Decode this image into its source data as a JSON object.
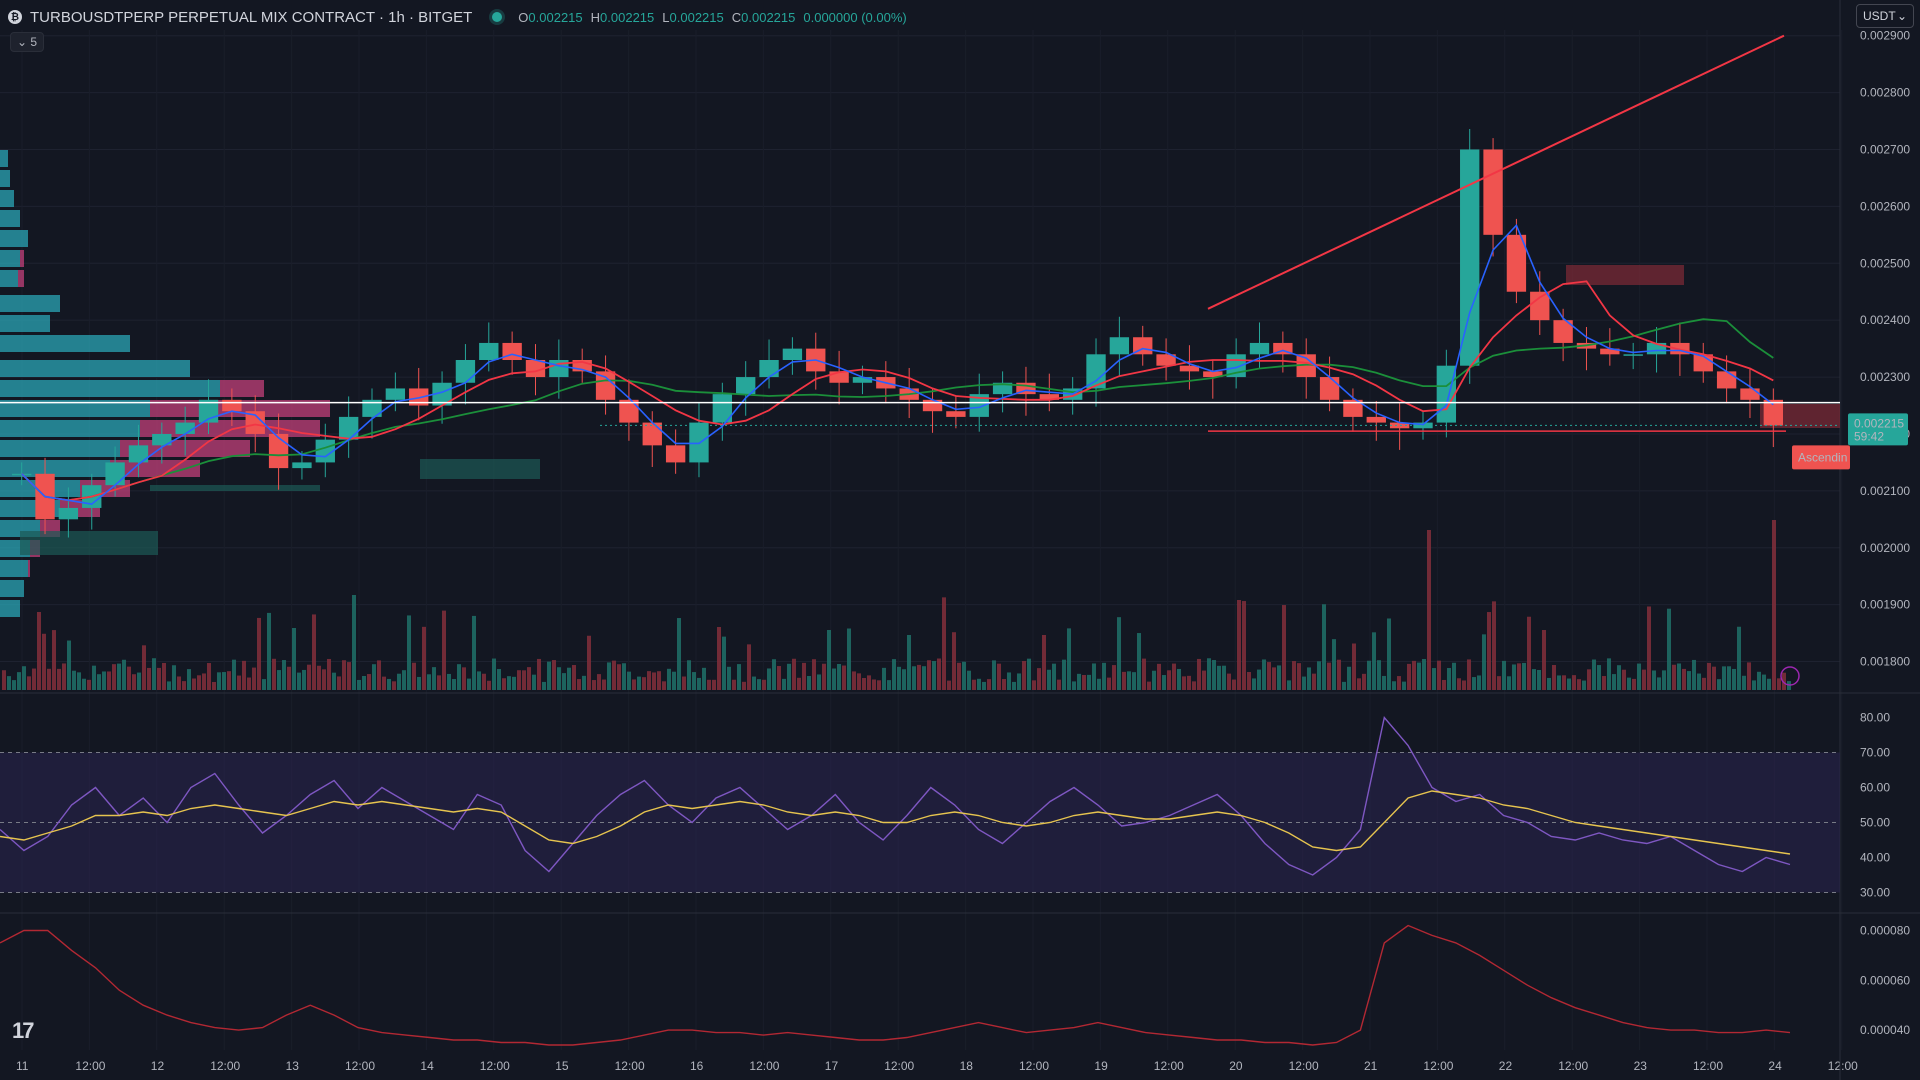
{
  "header": {
    "title": "TURBOUSDTPERP PERPETUAL MIX CONTRACT · 1h · BITGET",
    "ohlc": {
      "o_label": "O",
      "o": "0.002215",
      "h_label": "H",
      "h": "0.002215",
      "l_label": "L",
      "l": "0.002215",
      "c_label": "C",
      "c": "0.002215",
      "change": "0.000000 (0.00%)"
    },
    "interval_count": "5",
    "currency": "USDT"
  },
  "colors": {
    "background": "#131722",
    "up": "#26a69a",
    "down": "#ef5350",
    "ma_blue": "#2962ff",
    "ma_red": "#f23645",
    "ma_green": "#1b8f3a",
    "rsi": "#7e57c2",
    "rsi_ma": "#e6c44f",
    "lower_line": "#f23645",
    "trendline": "#f23645"
  },
  "price_badge": {
    "price": "0.002215",
    "countdown": "59:42"
  },
  "pattern_label": "Ascendin",
  "chart_data": [
    {
      "type": "candlestick",
      "pane": "price",
      "ylim": [
        0.00175,
        0.00291
      ],
      "y_ticks": [
        "0.002900",
        "0.002800",
        "0.002700",
        "0.002600",
        "0.002500",
        "0.002400",
        "0.002300",
        "0.002200",
        "0.002100",
        "0.002000",
        "0.001900",
        "0.001800"
      ],
      "x_ticks": [
        "11",
        "12:00",
        "12",
        "12:00",
        "13",
        "12:00",
        "14",
        "12:00",
        "15",
        "12:00",
        "16",
        "12:00",
        "17",
        "12:00",
        "18",
        "12:00",
        "19",
        "12:00",
        "20",
        "12:00",
        "21",
        "12:00",
        "22",
        "12:00",
        "23",
        "12:00",
        "24",
        "12:00"
      ],
      "closes_approx": [
        0.00213,
        0.00205,
        0.00207,
        0.00211,
        0.00215,
        0.00218,
        0.0022,
        0.00222,
        0.00226,
        0.00224,
        0.0022,
        0.00214,
        0.00215,
        0.00219,
        0.00223,
        0.00226,
        0.00228,
        0.00225,
        0.00229,
        0.00233,
        0.00236,
        0.00233,
        0.0023,
        0.00233,
        0.00231,
        0.00226,
        0.00222,
        0.00218,
        0.00215,
        0.00222,
        0.00227,
        0.0023,
        0.00233,
        0.00235,
        0.00231,
        0.00229,
        0.0023,
        0.00228,
        0.00226,
        0.00224,
        0.00223,
        0.00227,
        0.00229,
        0.00227,
        0.00226,
        0.00228,
        0.00234,
        0.00237,
        0.00234,
        0.00232,
        0.00231,
        0.0023,
        0.00234,
        0.00236,
        0.00234,
        0.0023,
        0.00226,
        0.00223,
        0.00222,
        0.00221,
        0.00222,
        0.00232,
        0.0027,
        0.00255,
        0.00245,
        0.0024,
        0.00236,
        0.00235,
        0.00234,
        0.00234,
        0.00236,
        0.00234,
        0.00231,
        0.00228,
        0.00226,
        0.002215
      ],
      "last_price": 0.002215,
      "horizontal_line": 0.002255,
      "support_line": 0.002212,
      "trendline": {
        "from": 0.00242,
        "to": 0.0029
      }
    },
    {
      "type": "line",
      "pane": "rsi",
      "ylim": [
        25,
        85
      ],
      "y_ticks": [
        "80.00",
        "70.00",
        "60.00",
        "50.00",
        "40.00",
        "30.00"
      ],
      "bands": [
        30,
        50,
        70
      ],
      "values_approx": [
        48,
        42,
        46,
        55,
        60,
        52,
        57,
        50,
        60,
        64,
        55,
        47,
        52,
        58,
        62,
        54,
        60,
        56,
        52,
        48,
        58,
        55,
        42,
        36,
        44,
        52,
        58,
        62,
        55,
        50,
        57,
        60,
        54,
        48,
        52,
        58,
        50,
        45,
        52,
        60,
        55,
        48,
        44,
        50,
        56,
        60,
        55,
        49,
        50,
        52,
        55,
        58,
        52,
        44,
        38,
        35,
        40,
        48,
        80,
        72,
        60,
        56,
        58,
        52,
        50,
        46,
        45,
        47,
        45,
        44,
        46,
        42,
        38,
        36,
        40,
        38
      ],
      "ma_values_approx": [
        46,
        45,
        47,
        49,
        52,
        52,
        53,
        52,
        54,
        55,
        54,
        53,
        52,
        54,
        56,
        55,
        56,
        55,
        54,
        53,
        54,
        53,
        49,
        45,
        44,
        46,
        49,
        53,
        55,
        54,
        55,
        56,
        55,
        53,
        52,
        53,
        52,
        50,
        50,
        52,
        53,
        52,
        50,
        49,
        50,
        52,
        53,
        52,
        51,
        51,
        52,
        53,
        52,
        50,
        47,
        43,
        42,
        43,
        50,
        57,
        59,
        58,
        57,
        55,
        54,
        52,
        50,
        49,
        48,
        47,
        46,
        45,
        44,
        43,
        42,
        41
      ]
    },
    {
      "type": "line",
      "pane": "lower",
      "ylim": [
        3.2e-05,
        8.5e-05
      ],
      "y_ticks": [
        "0.000080",
        "0.000060",
        "0.000040"
      ],
      "values_approx": [
        7.5e-05,
        8e-05,
        8e-05,
        7.2e-05,
        6.5e-05,
        5.6e-05,
        5e-05,
        4.6e-05,
        4.3e-05,
        4.1e-05,
        4e-05,
        4.1e-05,
        4.6e-05,
        5e-05,
        4.6e-05,
        4.1e-05,
        3.9e-05,
        3.8e-05,
        3.7e-05,
        3.6e-05,
        3.6e-05,
        3.5e-05,
        3.5e-05,
        3.4e-05,
        3.4e-05,
        3.5e-05,
        3.6e-05,
        3.8e-05,
        4e-05,
        4e-05,
        3.9e-05,
        3.9e-05,
        3.8e-05,
        3.9e-05,
        3.8e-05,
        3.7e-05,
        3.6e-05,
        3.6e-05,
        3.7e-05,
        3.9e-05,
        4.1e-05,
        4.3e-05,
        4.1e-05,
        3.9e-05,
        4e-05,
        4.1e-05,
        4.3e-05,
        4.1e-05,
        3.9e-05,
        3.8e-05,
        3.7e-05,
        3.6e-05,
        3.6e-05,
        3.5e-05,
        3.5e-05,
        3.4e-05,
        3.5e-05,
        4e-05,
        7.5e-05,
        8.2e-05,
        7.8e-05,
        7.5e-05,
        7e-05,
        6.4e-05,
        5.8e-05,
        5.3e-05,
        4.9e-05,
        4.6e-05,
        4.3e-05,
        4.1e-05,
        4e-05,
        4e-05,
        3.9e-05,
        3.9e-05,
        4e-05,
        3.9e-05
      ]
    }
  ]
}
